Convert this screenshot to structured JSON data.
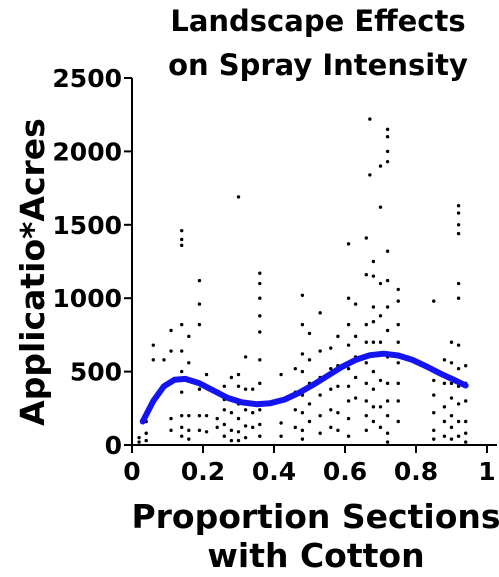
{
  "chart_data": {
    "type": "scatter",
    "title": [
      "Landscape Effects",
      "on Spray Intensity"
    ],
    "y_label": "Applicatio*Acres",
    "x_label": [
      "Proportion Sections",
      "with Cotton"
    ],
    "xlim": [
      0,
      1
    ],
    "ylim": [
      0,
      2500
    ],
    "xticks": [
      0,
      0.2,
      0.4,
      0.6,
      0.8,
      1
    ],
    "yticks": [
      0,
      500,
      1000,
      1500,
      2000,
      2500
    ],
    "points": {
      "color": "#000000",
      "x": [
        0.02,
        0.02,
        0.04,
        0.04,
        0.04,
        0.06,
        0.06,
        0.06,
        0.09,
        0.11,
        0.11,
        0.11,
        0.11,
        0.14,
        0.14,
        0.14,
        0.14,
        0.14,
        0.14,
        0.14,
        0.14,
        0.14,
        0.14,
        0.16,
        0.16,
        0.16,
        0.16,
        0.16,
        0.19,
        0.19,
        0.19,
        0.19,
        0.19,
        0.19,
        0.19,
        0.21,
        0.21,
        0.21,
        0.24,
        0.24,
        0.26,
        0.26,
        0.26,
        0.26,
        0.26,
        0.28,
        0.28,
        0.28,
        0.28,
        0.28,
        0.3,
        0.3,
        0.3,
        0.3,
        0.3,
        0.3,
        0.3,
        0.32,
        0.32,
        0.32,
        0.32,
        0.32,
        0.34,
        0.34,
        0.34,
        0.36,
        0.36,
        0.36,
        0.36,
        0.36,
        0.36,
        0.36,
        0.36,
        0.36,
        0.36,
        0.42,
        0.42,
        0.42,
        0.42,
        0.46,
        0.46,
        0.46,
        0.46,
        0.48,
        0.48,
        0.48,
        0.48,
        0.48,
        0.48,
        0.48,
        0.48,
        0.5,
        0.5,
        0.5,
        0.5,
        0.5,
        0.53,
        0.53,
        0.53,
        0.53,
        0.53,
        0.53,
        0.56,
        0.56,
        0.56,
        0.56,
        0.56,
        0.58,
        0.58,
        0.58,
        0.58,
        0.58,
        0.61,
        0.61,
        0.61,
        0.61,
        0.61,
        0.61,
        0.61,
        0.61,
        0.61,
        0.63,
        0.63,
        0.63,
        0.63,
        0.63,
        0.66,
        0.66,
        0.66,
        0.66,
        0.66,
        0.66,
        0.66,
        0.66,
        0.66,
        0.67,
        0.67,
        0.68,
        0.68,
        0.68,
        0.68,
        0.68,
        0.68,
        0.68,
        0.68,
        0.68,
        0.7,
        0.7,
        0.7,
        0.7,
        0.7,
        0.7,
        0.7,
        0.7,
        0.72,
        0.72,
        0.72,
        0.72,
        0.72,
        0.72,
        0.72,
        0.72,
        0.72,
        0.72,
        0.72,
        0.72,
        0.72,
        0.72,
        0.75,
        0.75,
        0.75,
        0.75,
        0.75,
        0.75,
        0.75,
        0.75,
        0.85,
        0.85,
        0.85,
        0.85,
        0.85,
        0.85,
        0.88,
        0.88,
        0.88,
        0.88,
        0.88,
        0.9,
        0.9,
        0.9,
        0.9,
        0.9,
        0.9,
        0.9,
        0.92,
        0.92,
        0.92,
        0.92,
        0.92,
        0.92,
        0.92,
        0.92,
        0.92,
        0.92,
        0.92,
        0.92,
        0.94,
        0.94,
        0.94,
        0.94,
        0.94,
        0.94
      ],
      "values": [
        50,
        20,
        160,
        80,
        30,
        680,
        580,
        300,
        580,
        780,
        640,
        180,
        100,
        1460,
        1400,
        1360,
        820,
        640,
        500,
        360,
        200,
        120,
        60,
        740,
        560,
        200,
        100,
        40,
        1120,
        960,
        820,
        420,
        380,
        200,
        100,
        480,
        200,
        90,
        180,
        120,
        400,
        310,
        240,
        140,
        60,
        460,
        320,
        220,
        100,
        30,
        1690,
        480,
        400,
        280,
        180,
        90,
        30,
        600,
        380,
        240,
        130,
        50,
        380,
        220,
        120,
        1170,
        1100,
        1000,
        880,
        770,
        580,
        420,
        240,
        140,
        60,
        480,
        300,
        150,
        60,
        520,
        360,
        240,
        120,
        1020,
        820,
        620,
        500,
        340,
        220,
        100,
        40,
        760,
        580,
        420,
        280,
        160,
        900,
        640,
        460,
        340,
        200,
        80,
        660,
        520,
        380,
        240,
        120,
        740,
        540,
        400,
        220,
        100,
        1370,
        1000,
        820,
        680,
        520,
        400,
        300,
        180,
        60,
        960,
        740,
        600,
        460,
        320,
        1410,
        1160,
        820,
        700,
        560,
        420,
        300,
        200,
        100,
        2220,
        1840,
        1250,
        1150,
        940,
        840,
        700,
        500,
        380,
        260,
        160,
        1900,
        1620,
        1100,
        880,
        700,
        440,
        260,
        120,
        2150,
        2100,
        2000,
        1930,
        1320,
        1120,
        940,
        780,
        600,
        420,
        300,
        200,
        80,
        20,
        1060,
        980,
        820,
        700,
        560,
        420,
        300,
        160,
        980,
        440,
        340,
        220,
        100,
        40,
        580,
        420,
        260,
        160,
        60,
        700,
        560,
        420,
        320,
        200,
        120,
        40,
        1630,
        1580,
        1500,
        1440,
        1100,
        1000,
        680,
        520,
        400,
        280,
        160,
        60,
        540,
        420,
        300,
        160,
        80,
        20
      ]
    },
    "fit": {
      "color": "#1414f0",
      "x": [
        0.03,
        0.06,
        0.09,
        0.12,
        0.15,
        0.19,
        0.23,
        0.27,
        0.31,
        0.35,
        0.39,
        0.43,
        0.47,
        0.51,
        0.55,
        0.59,
        0.63,
        0.67,
        0.71,
        0.75,
        0.79,
        0.83,
        0.87,
        0.91,
        0.94
      ],
      "values": [
        160,
        300,
        400,
        445,
        450,
        420,
        370,
        320,
        290,
        278,
        285,
        310,
        355,
        410,
        470,
        530,
        580,
        612,
        622,
        610,
        580,
        535,
        485,
        440,
        405
      ]
    }
  }
}
